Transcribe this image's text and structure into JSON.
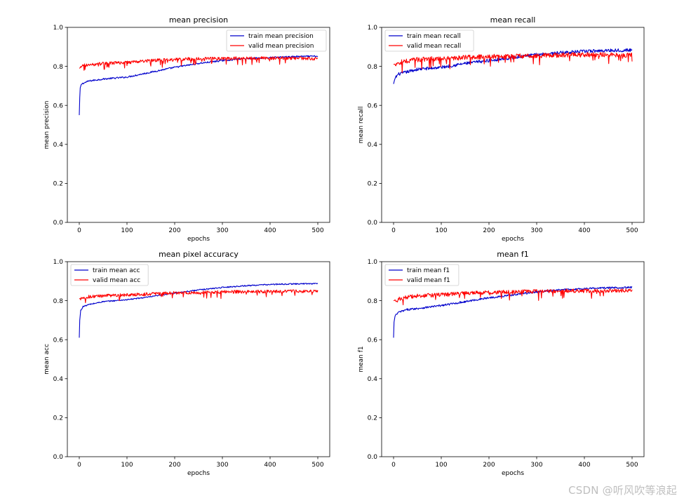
{
  "watermark": "CSDN @听风吹等浪起",
  "chart_data": [
    {
      "type": "line",
      "title": "mean precision",
      "xlabel": "epochs",
      "ylabel": "mean precision",
      "xlim": [
        -25,
        525
      ],
      "ylim": [
        0.0,
        1.0
      ],
      "xticks": [
        0,
        100,
        200,
        300,
        400,
        500
      ],
      "yticks": [
        0.0,
        0.2,
        0.4,
        0.6,
        0.8,
        1.0
      ],
      "legend_position": "upper right",
      "x": {
        "start": 0,
        "end": 500,
        "step": 1
      },
      "series": [
        {
          "name": "train mean precision",
          "color": "#0000cc",
          "keypoints": [
            [
              0,
              0.55
            ],
            [
              1,
              0.64
            ],
            [
              2,
              0.69
            ],
            [
              5,
              0.71
            ],
            [
              20,
              0.725
            ],
            [
              50,
              0.735
            ],
            [
              100,
              0.745
            ],
            [
              150,
              0.77
            ],
            [
              200,
              0.795
            ],
            [
              250,
              0.815
            ],
            [
              300,
              0.83
            ],
            [
              350,
              0.84
            ],
            [
              400,
              0.845
            ],
            [
              450,
              0.85
            ],
            [
              500,
              0.852
            ]
          ],
          "noise": 0.004
        },
        {
          "name": "valid mean precision",
          "color": "#ff0000",
          "keypoints": [
            [
              0,
              0.79
            ],
            [
              10,
              0.805
            ],
            [
              50,
              0.815
            ],
            [
              100,
              0.82
            ],
            [
              150,
              0.83
            ],
            [
              200,
              0.835
            ],
            [
              250,
              0.84
            ],
            [
              300,
              0.84
            ],
            [
              350,
              0.842
            ],
            [
              400,
              0.842
            ],
            [
              450,
              0.842
            ],
            [
              500,
              0.84
            ]
          ],
          "noise": 0.008
        }
      ]
    },
    {
      "type": "line",
      "title": "mean recall",
      "xlabel": "epochs",
      "ylabel": "mean recall",
      "xlim": [
        -25,
        525
      ],
      "ylim": [
        0.0,
        1.0
      ],
      "xticks": [
        0,
        100,
        200,
        300,
        400,
        500
      ],
      "yticks": [
        0.0,
        0.2,
        0.4,
        0.6,
        0.8,
        1.0
      ],
      "legend_position": "upper left",
      "x": {
        "start": 0,
        "end": 500,
        "step": 1
      },
      "series": [
        {
          "name": "train mean recall",
          "color": "#0000cc",
          "keypoints": [
            [
              0,
              0.71
            ],
            [
              3,
              0.74
            ],
            [
              10,
              0.76
            ],
            [
              50,
              0.785
            ],
            [
              100,
              0.795
            ],
            [
              150,
              0.815
            ],
            [
              200,
              0.83
            ],
            [
              250,
              0.845
            ],
            [
              300,
              0.86
            ],
            [
              350,
              0.87
            ],
            [
              400,
              0.877
            ],
            [
              450,
              0.882
            ],
            [
              500,
              0.883
            ]
          ],
          "noise": 0.008
        },
        {
          "name": "valid mean recall",
          "color": "#ff0000",
          "keypoints": [
            [
              0,
              0.81
            ],
            [
              20,
              0.825
            ],
            [
              50,
              0.835
            ],
            [
              100,
              0.84
            ],
            [
              150,
              0.845
            ],
            [
              200,
              0.85
            ],
            [
              250,
              0.852
            ],
            [
              300,
              0.855
            ],
            [
              350,
              0.858
            ],
            [
              400,
              0.86
            ],
            [
              450,
              0.86
            ],
            [
              500,
              0.858
            ]
          ],
          "noise": 0.012
        }
      ]
    },
    {
      "type": "line",
      "title": "mean pixel accuracy",
      "xlabel": "epochs",
      "ylabel": "mean acc",
      "xlim": [
        -25,
        525
      ],
      "ylim": [
        0.0,
        1.0
      ],
      "xticks": [
        0,
        100,
        200,
        300,
        400,
        500
      ],
      "yticks": [
        0.0,
        0.2,
        0.4,
        0.6,
        0.8,
        1.0
      ],
      "legend_position": "upper left",
      "x": {
        "start": 0,
        "end": 500,
        "step": 1
      },
      "series": [
        {
          "name": "train mean acc",
          "color": "#0000cc",
          "keypoints": [
            [
              0,
              0.61
            ],
            [
              1,
              0.7
            ],
            [
              3,
              0.75
            ],
            [
              8,
              0.77
            ],
            [
              20,
              0.78
            ],
            [
              50,
              0.795
            ],
            [
              100,
              0.805
            ],
            [
              150,
              0.82
            ],
            [
              200,
              0.84
            ],
            [
              250,
              0.855
            ],
            [
              300,
              0.868
            ],
            [
              350,
              0.877
            ],
            [
              400,
              0.883
            ],
            [
              450,
              0.886
            ],
            [
              500,
              0.888
            ]
          ],
          "noise": 0.003
        },
        {
          "name": "valid mean acc",
          "color": "#ff0000",
          "keypoints": [
            [
              0,
              0.81
            ],
            [
              20,
              0.82
            ],
            [
              50,
              0.825
            ],
            [
              100,
              0.83
            ],
            [
              150,
              0.835
            ],
            [
              200,
              0.84
            ],
            [
              250,
              0.842
            ],
            [
              300,
              0.845
            ],
            [
              350,
              0.846
            ],
            [
              400,
              0.847
            ],
            [
              450,
              0.848
            ],
            [
              500,
              0.847
            ]
          ],
          "noise": 0.008
        }
      ]
    },
    {
      "type": "line",
      "title": "mean f1",
      "xlabel": "epochs",
      "ylabel": "mean f1",
      "xlim": [
        -25,
        525
      ],
      "ylim": [
        0.0,
        1.0
      ],
      "xticks": [
        0,
        100,
        200,
        300,
        400,
        500
      ],
      "yticks": [
        0.0,
        0.2,
        0.4,
        0.6,
        0.8,
        1.0
      ],
      "legend_position": "upper left",
      "x": {
        "start": 0,
        "end": 500,
        "step": 1
      },
      "series": [
        {
          "name": "train mean f1",
          "color": "#0000cc",
          "keypoints": [
            [
              0,
              0.61
            ],
            [
              1,
              0.69
            ],
            [
              3,
              0.72
            ],
            [
              10,
              0.74
            ],
            [
              30,
              0.755
            ],
            [
              50,
              0.76
            ],
            [
              100,
              0.775
            ],
            [
              150,
              0.795
            ],
            [
              200,
              0.815
            ],
            [
              250,
              0.83
            ],
            [
              300,
              0.845
            ],
            [
              350,
              0.855
            ],
            [
              400,
              0.862
            ],
            [
              450,
              0.866
            ],
            [
              500,
              0.868
            ]
          ],
          "noise": 0.005
        },
        {
          "name": "valid mean f1",
          "color": "#ff0000",
          "keypoints": [
            [
              0,
              0.8
            ],
            [
              20,
              0.815
            ],
            [
              50,
              0.825
            ],
            [
              100,
              0.83
            ],
            [
              150,
              0.838
            ],
            [
              200,
              0.842
            ],
            [
              250,
              0.846
            ],
            [
              300,
              0.848
            ],
            [
              350,
              0.85
            ],
            [
              400,
              0.85
            ],
            [
              450,
              0.851
            ],
            [
              500,
              0.85
            ]
          ],
          "noise": 0.01
        }
      ]
    }
  ]
}
